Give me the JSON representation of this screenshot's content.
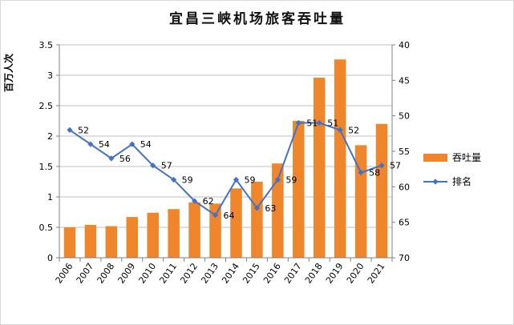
{
  "chart_data": {
    "type": "bar+line",
    "title": "宜昌三峡机场旅客吞吐量",
    "ylabel": "百万人次",
    "categories": [
      "2006",
      "2007",
      "2008",
      "2009",
      "2010",
      "2011",
      "2012",
      "2013",
      "2014",
      "2015",
      "2016",
      "2017",
      "2018",
      "2019",
      "2020",
      "2021"
    ],
    "series": [
      {
        "name": "吞吐量",
        "type": "bar",
        "axis": "left",
        "color": "#F0862B",
        "values": [
          0.5,
          0.54,
          0.52,
          0.67,
          0.74,
          0.8,
          0.91,
          0.89,
          1.14,
          1.25,
          1.55,
          2.25,
          2.96,
          3.26,
          1.85,
          2.2
        ]
      },
      {
        "name": "排名",
        "type": "line",
        "axis": "right",
        "color": "#4472C4",
        "values": [
          52,
          54,
          56,
          54,
          57,
          59,
          62,
          64,
          59,
          63,
          59,
          51,
          51,
          52,
          58,
          57
        ]
      }
    ],
    "y_left": {
      "min": 0,
      "max": 3.5,
      "ticks": [
        "0",
        "0.5",
        "1",
        "1.5",
        "2",
        "2.5",
        "3",
        "3.5"
      ],
      "tick_values": [
        0,
        0.5,
        1,
        1.5,
        2,
        2.5,
        3,
        3.5
      ]
    },
    "y_right": {
      "min": 40,
      "max": 70,
      "inverted": true,
      "ticks": [
        "40",
        "45",
        "50",
        "55",
        "60",
        "65",
        "70"
      ],
      "tick_values": [
        40,
        45,
        50,
        55,
        60,
        65,
        70
      ]
    },
    "grid": true,
    "legend_position": "right"
  }
}
